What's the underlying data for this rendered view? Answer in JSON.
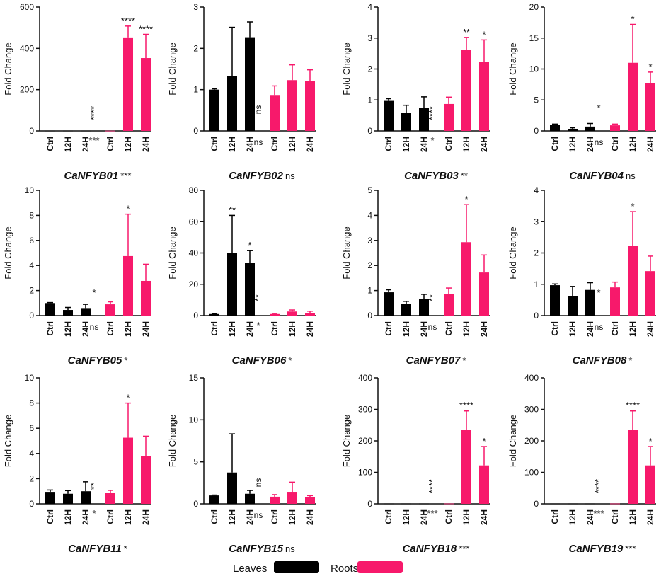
{
  "chart_data": [
    {
      "type": "bar",
      "gene": "CaNFYB01",
      "overall_sig": "***",
      "ylabel": "Fold Change",
      "ylim": [
        0,
        600
      ],
      "yticks": [
        0,
        200,
        400,
        600
      ],
      "categories": [
        "Ctrl",
        "12H",
        "24H",
        "Ctrl",
        "12H",
        "24H"
      ],
      "values": [
        1,
        1,
        1,
        1,
        453,
        353
      ],
      "errors": [
        0,
        0,
        0,
        0,
        55,
        115
      ],
      "bar_sig": [
        "",
        "",
        "",
        "",
        "****",
        "****"
      ],
      "leaf_sig": "****",
      "root_sig": "***"
    },
    {
      "type": "bar",
      "gene": "CaNFYB02",
      "overall_sig": "ns",
      "ylabel": "Fold Change",
      "ylim": [
        0,
        3
      ],
      "yticks": [
        0,
        1,
        2,
        3
      ],
      "categories": [
        "Ctrl",
        "12H",
        "24H",
        "Ctrl",
        "12H",
        "24H"
      ],
      "values": [
        1,
        1.33,
        2.27,
        0.87,
        1.23,
        1.2
      ],
      "errors": [
        0.02,
        1.18,
        0.37,
        0.22,
        0.37,
        0.28
      ],
      "bar_sig": [
        "",
        "",
        "",
        "",
        "",
        ""
      ],
      "leaf_sig": "ns",
      "root_sig": "ns"
    },
    {
      "type": "bar",
      "gene": "CaNFYB03",
      "overall_sig": "**",
      "ylabel": "Fold Change",
      "ylim": [
        0,
        4
      ],
      "yticks": [
        0,
        1,
        2,
        3,
        4
      ],
      "categories": [
        "Ctrl",
        "12H",
        "24H",
        "Ctrl",
        "12H",
        "24H"
      ],
      "values": [
        0.97,
        0.58,
        0.75,
        0.87,
        2.62,
        2.22
      ],
      "errors": [
        0.07,
        0.25,
        0.35,
        0.22,
        0.4,
        0.72
      ],
      "bar_sig": [
        "",
        "",
        "",
        "",
        "**",
        "*"
      ],
      "leaf_sig": "****",
      "root_sig": "*"
    },
    {
      "type": "bar",
      "gene": "CaNFYB04",
      "overall_sig": "ns",
      "ylabel": "Fold Change",
      "ylim": [
        0,
        20
      ],
      "yticks": [
        0,
        5,
        10,
        15,
        20
      ],
      "categories": [
        "Ctrl",
        "12H",
        "24H",
        "Ctrl",
        "12H",
        "24H"
      ],
      "values": [
        1,
        0.3,
        0.7,
        0.9,
        11,
        7.7
      ],
      "errors": [
        0.1,
        0.2,
        0.5,
        0.2,
        6.2,
        1.8
      ],
      "bar_sig": [
        "",
        "",
        "",
        "",
        "*",
        "*"
      ],
      "leaf_sig": "*",
      "root_sig": "ns"
    },
    {
      "type": "bar",
      "gene": "CaNFYB05",
      "overall_sig": "*",
      "ylabel": "Fold Change",
      "ylim": [
        0,
        10
      ],
      "yticks": [
        0,
        2,
        4,
        6,
        8,
        10
      ],
      "categories": [
        "Ctrl",
        "12H",
        "24H",
        "Ctrl",
        "12H",
        "24H"
      ],
      "values": [
        1,
        0.45,
        0.6,
        0.9,
        4.75,
        2.77
      ],
      "errors": [
        0.04,
        0.2,
        0.3,
        0.2,
        3.35,
        1.33
      ],
      "bar_sig": [
        "",
        "",
        "",
        "",
        "*",
        ""
      ],
      "leaf_sig": "*",
      "root_sig": "ns"
    },
    {
      "type": "bar",
      "gene": "CaNFYB06",
      "overall_sig": "*",
      "ylabel": "Fold Change",
      "ylim": [
        0,
        80
      ],
      "yticks": [
        0,
        20,
        40,
        60,
        80
      ],
      "categories": [
        "Ctrl",
        "12H",
        "24H",
        "Ctrl",
        "12H",
        "24H"
      ],
      "values": [
        1,
        40,
        33.5,
        1,
        2.6,
        1.8
      ],
      "errors": [
        0.2,
        24,
        8,
        0.3,
        1,
        1
      ],
      "bar_sig": [
        "",
        "**",
        "*",
        "",
        "",
        ""
      ],
      "leaf_sig": "**",
      "root_sig": "*"
    },
    {
      "type": "bar",
      "gene": "CaNFYB07",
      "overall_sig": "*",
      "ylabel": "Fold Change",
      "ylim": [
        0,
        5
      ],
      "yticks": [
        0,
        1,
        2,
        3,
        4,
        5
      ],
      "categories": [
        "Ctrl",
        "12H",
        "24H",
        "Ctrl",
        "12H",
        "24H"
      ],
      "values": [
        0.93,
        0.47,
        0.65,
        0.87,
        2.93,
        1.72
      ],
      "errors": [
        0.1,
        0.1,
        0.2,
        0.23,
        1.5,
        0.7
      ],
      "bar_sig": [
        "",
        "",
        "",
        "",
        "*",
        ""
      ],
      "leaf_sig": "**",
      "root_sig": "ns"
    },
    {
      "type": "bar",
      "gene": "CaNFYB08",
      "overall_sig": "*",
      "ylabel": "Fold Change",
      "ylim": [
        0,
        4
      ],
      "yticks": [
        0,
        1,
        2,
        3,
        4
      ],
      "categories": [
        "Ctrl",
        "12H",
        "24H",
        "Ctrl",
        "12H",
        "24H"
      ],
      "values": [
        0.97,
        0.63,
        0.82,
        0.9,
        2.22,
        1.42
      ],
      "errors": [
        0.04,
        0.3,
        0.23,
        0.17,
        1.1,
        0.48
      ],
      "bar_sig": [
        "",
        "",
        "",
        "",
        "*",
        ""
      ],
      "leaf_sig": "*",
      "root_sig": "ns"
    },
    {
      "type": "bar",
      "gene": "CaNFYB11",
      "overall_sig": "*",
      "ylabel": "Fold Change",
      "ylim": [
        0,
        10
      ],
      "yticks": [
        0,
        2,
        4,
        6,
        8,
        10
      ],
      "categories": [
        "Ctrl",
        "12H",
        "24H",
        "Ctrl",
        "12H",
        "24H"
      ],
      "values": [
        0.95,
        0.8,
        1,
        0.87,
        5.25,
        3.77
      ],
      "errors": [
        0.15,
        0.25,
        0.75,
        0.2,
        2.75,
        1.6
      ],
      "bar_sig": [
        "",
        "",
        "",
        "",
        "*",
        ""
      ],
      "leaf_sig": "**",
      "root_sig": "*"
    },
    {
      "type": "bar",
      "gene": "CaNFYB15",
      "overall_sig": "ns",
      "ylabel": "Fold Change",
      "ylim": [
        0,
        15
      ],
      "yticks": [
        0,
        5,
        10,
        15
      ],
      "categories": [
        "Ctrl",
        "12H",
        "24H",
        "Ctrl",
        "12H",
        "24H"
      ],
      "values": [
        1,
        3.73,
        1.2,
        0.85,
        1.43,
        0.78
      ],
      "errors": [
        0.05,
        4.6,
        0.4,
        0.25,
        1.15,
        0.2
      ],
      "bar_sig": [
        "",
        "",
        "",
        "",
        "",
        ""
      ],
      "leaf_sig": "ns",
      "root_sig": "ns"
    },
    {
      "type": "bar",
      "gene": "CaNFYB18",
      "overall_sig": "***",
      "ylabel": "Fold Change",
      "ylim": [
        0,
        400
      ],
      "yticks": [
        0,
        100,
        200,
        300,
        400
      ],
      "categories": [
        "Ctrl",
        "12H",
        "24H",
        "Ctrl",
        "12H",
        "24H"
      ],
      "values": [
        1,
        1,
        1,
        1,
        235,
        122
      ],
      "errors": [
        0,
        0,
        0,
        0,
        60,
        60
      ],
      "bar_sig": [
        "",
        "",
        "",
        "",
        "****",
        "*"
      ],
      "leaf_sig": "****",
      "root_sig": "***"
    },
    {
      "type": "bar",
      "gene": "CaNFYB19",
      "overall_sig": "***",
      "ylabel": "Fold Change",
      "ylim": [
        0,
        400
      ],
      "yticks": [
        0,
        100,
        200,
        300,
        400
      ],
      "categories": [
        "Ctrl",
        "12H",
        "24H",
        "Ctrl",
        "12H",
        "24H"
      ],
      "values": [
        1,
        1,
        1,
        1,
        235,
        122
      ],
      "errors": [
        0,
        0,
        0,
        0,
        60,
        60
      ],
      "bar_sig": [
        "",
        "",
        "",
        "",
        "****",
        "*"
      ],
      "leaf_sig": "****",
      "root_sig": "***"
    }
  ],
  "legend": [
    {
      "label": "Leaves",
      "color": "#000000"
    },
    {
      "label": "Roots",
      "color": "#f7196b"
    }
  ],
  "colors": {
    "leaves": "#000000",
    "roots": "#f7196b",
    "axis": "#111111"
  }
}
